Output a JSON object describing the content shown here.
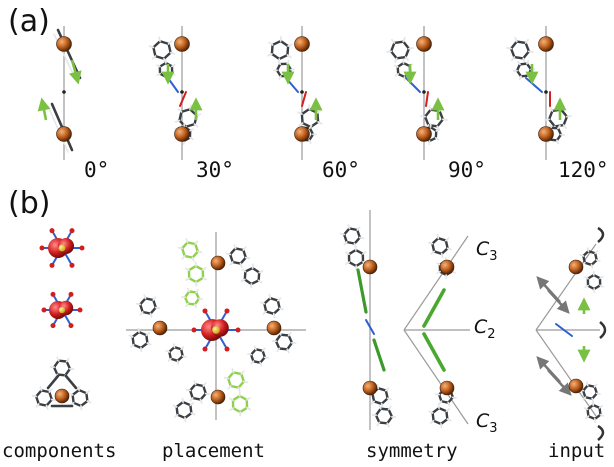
{
  "panels": {
    "a": {
      "label": "(a)",
      "angles": [
        "0°",
        "30°",
        "60°",
        "90°",
        "120°"
      ]
    },
    "b": {
      "label": "(b)",
      "captions": {
        "components": "components",
        "placement": "placement",
        "symmetry": "symmetry",
        "input": "input"
      },
      "axis_labels": {
        "c3_top": {
          "main": "C",
          "sub": "3"
        },
        "c2": {
          "main": "C",
          "sub": "2"
        },
        "c3_bottom": {
          "main": "C",
          "sub": "3"
        }
      }
    }
  },
  "colors": {
    "metal": "#b5571a",
    "ligand": "#3a3f44",
    "hydrogen": "#e6e6e6",
    "nitrogen": "#2f5fd0",
    "oxygen": "#d21e1e",
    "sulfur": "#e7c82a",
    "arrow": "#7ac143",
    "axis": "#9a9a9a"
  }
}
